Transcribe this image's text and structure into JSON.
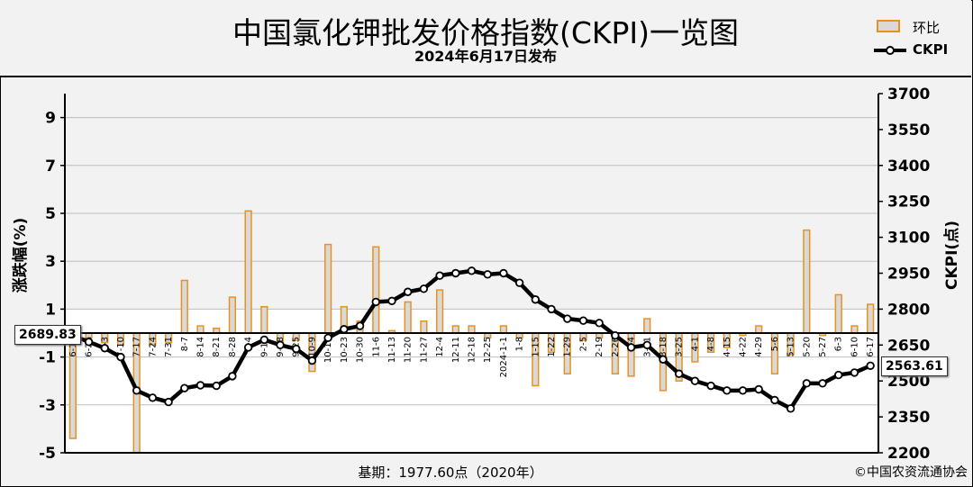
{
  "header": {
    "title": "中国氯化钾批发价格指数(CKPI)一览图",
    "subtitle": "2024年6月17日发布"
  },
  "legend": {
    "bar_label": "环比",
    "line_label": "CKPI"
  },
  "footer": {
    "base": "基期：1977.60点（2020年）",
    "source": "©中国农资流通协会"
  },
  "callouts": {
    "start": "2689.83",
    "end": "2563.61"
  },
  "colors": {
    "bar_fill": "#d9d9d9",
    "bar_border": "#e8921e",
    "line": "#000000",
    "marker_fill": "#ffffff",
    "plot_bg": "#ffffff",
    "band_bg": "#f2f2f2"
  },
  "chart_data": {
    "type": "bar+line",
    "x_tick_labels": [
      "6-19",
      "6-26",
      "7-3",
      "7-10",
      "7-17",
      "7-24",
      "7-31",
      "8-7",
      "8-14",
      "8-21",
      "8-28",
      "9-4",
      "9-11",
      "9-18",
      "9-25",
      "10-9",
      "10-16",
      "10-23",
      "10-30",
      "11-6",
      "11-13",
      "11-20",
      "11-27",
      "12-4",
      "12-11",
      "12-18",
      "12-25",
      "2024-1-1",
      "1-8",
      "1-15",
      "1-22",
      "1-29",
      "2-5",
      "2-19",
      "2-26",
      "3-4",
      "3-11",
      "3-18",
      "3-25",
      "4-1",
      "4-8",
      "4-15",
      "4-22",
      "4-29",
      "5-6",
      "5-13",
      "5-20",
      "5-27",
      "6-3",
      "6-10",
      "6-17"
    ],
    "left_axis": {
      "label": "涨跌幅(%)",
      "ticks": [
        9,
        7,
        5,
        3,
        1,
        -1,
        -3,
        -5
      ],
      "ylim": [
        -5,
        10
      ]
    },
    "right_axis": {
      "label": "CKPI(点)",
      "ticks": [
        3700,
        3550,
        3400,
        3250,
        3100,
        2950,
        2800,
        2650,
        2500,
        2350,
        2200
      ],
      "ylim": [
        2200,
        3700
      ]
    },
    "series": [
      {
        "name": "环比",
        "type": "bar",
        "axis": "left",
        "values": [
          -4.4,
          -0.2,
          -0.4,
          -0.5,
          -5.0,
          -0.5,
          -0.4,
          2.2,
          0.3,
          0.2,
          1.5,
          5.1,
          1.1,
          -0.4,
          -0.3,
          -1.6,
          3.7,
          1.1,
          0.5,
          3.6,
          0.1,
          1.3,
          0.5,
          1.8,
          0.3,
          0.3,
          -0.2,
          0.3,
          -0.2,
          -2.2,
          -0.8,
          -1.7,
          -0.3,
          -0.2,
          -1.7,
          -1.8,
          0.6,
          -2.4,
          -2.0,
          -1.2,
          -0.8,
          -0.6,
          -0.1,
          0.3,
          -1.7,
          -0.9,
          4.3,
          -0.1,
          1.6,
          0.3,
          1.2
        ]
      },
      {
        "name": "CKPI",
        "type": "line",
        "axis": "right",
        "values": [
          2689.83,
          2663,
          2637,
          2600,
          2460,
          2430,
          2412,
          2470,
          2482,
          2480,
          2520,
          2640,
          2672,
          2650,
          2634,
          2585,
          2680,
          2716,
          2730,
          2830,
          2834,
          2872,
          2885,
          2940,
          2950,
          2960,
          2945,
          2950,
          2910,
          2840,
          2800,
          2760,
          2752,
          2742,
          2690,
          2640,
          2650,
          2590,
          2530,
          2500,
          2480,
          2460,
          2460,
          2465,
          2420,
          2385,
          2490,
          2490,
          2525,
          2535,
          2563.61
        ]
      }
    ],
    "grid": true,
    "legend_position": "top-right"
  }
}
